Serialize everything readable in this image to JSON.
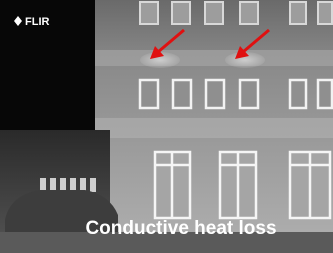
{
  "logo": {
    "text": "FLIR"
  },
  "caption": "Conductive heat loss"
}
